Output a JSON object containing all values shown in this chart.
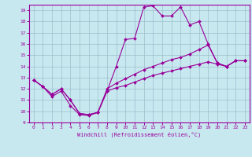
{
  "xlabel": "Windchill (Refroidissement éolien,°C)",
  "bg_color": "#c8e8f0",
  "line_color": "#990099",
  "grid_color": "#9bbfcc",
  "xlim": [
    -0.5,
    23.5
  ],
  "ylim": [
    9,
    19.5
  ],
  "xticks": [
    0,
    1,
    2,
    3,
    4,
    5,
    6,
    7,
    8,
    9,
    10,
    11,
    12,
    13,
    14,
    15,
    16,
    17,
    18,
    19,
    20,
    21,
    22,
    23
  ],
  "yticks": [
    9,
    10,
    11,
    12,
    13,
    14,
    15,
    16,
    17,
    18,
    19
  ],
  "line1_x": [
    0,
    1,
    2,
    3,
    4,
    5,
    6,
    7,
    8,
    9,
    10,
    11,
    12,
    13,
    14,
    15,
    16,
    17,
    18,
    19,
    20,
    21,
    22,
    23
  ],
  "line1_y": [
    12.8,
    12.2,
    11.3,
    11.8,
    10.5,
    9.7,
    9.6,
    9.9,
    11.8,
    14.0,
    16.4,
    16.5,
    19.3,
    19.4,
    18.5,
    18.5,
    19.3,
    17.7,
    18.0,
    16.0,
    14.3,
    14.0,
    14.5,
    14.5
  ],
  "line2_x": [
    0,
    1,
    2,
    3,
    4,
    5,
    6,
    7,
    8,
    9,
    10,
    11,
    12,
    13,
    14,
    15,
    16,
    17,
    18,
    19,
    20,
    21,
    22,
    23
  ],
  "line2_y": [
    12.8,
    12.2,
    11.5,
    12.0,
    11.0,
    9.8,
    9.7,
    9.9,
    12.0,
    12.5,
    12.9,
    13.3,
    13.7,
    14.0,
    14.3,
    14.6,
    14.8,
    15.1,
    15.5,
    15.9,
    14.3,
    14.0,
    14.5,
    14.5
  ],
  "line3_x": [
    0,
    1,
    2,
    3,
    4,
    5,
    6,
    7,
    8,
    9,
    10,
    11,
    12,
    13,
    14,
    15,
    16,
    17,
    18,
    19,
    20,
    21,
    22,
    23
  ],
  "line3_y": [
    12.8,
    12.2,
    11.5,
    12.0,
    11.0,
    9.8,
    9.7,
    9.9,
    11.8,
    12.1,
    12.3,
    12.6,
    12.9,
    13.2,
    13.4,
    13.6,
    13.8,
    14.0,
    14.2,
    14.4,
    14.2,
    14.0,
    14.5,
    14.5
  ]
}
